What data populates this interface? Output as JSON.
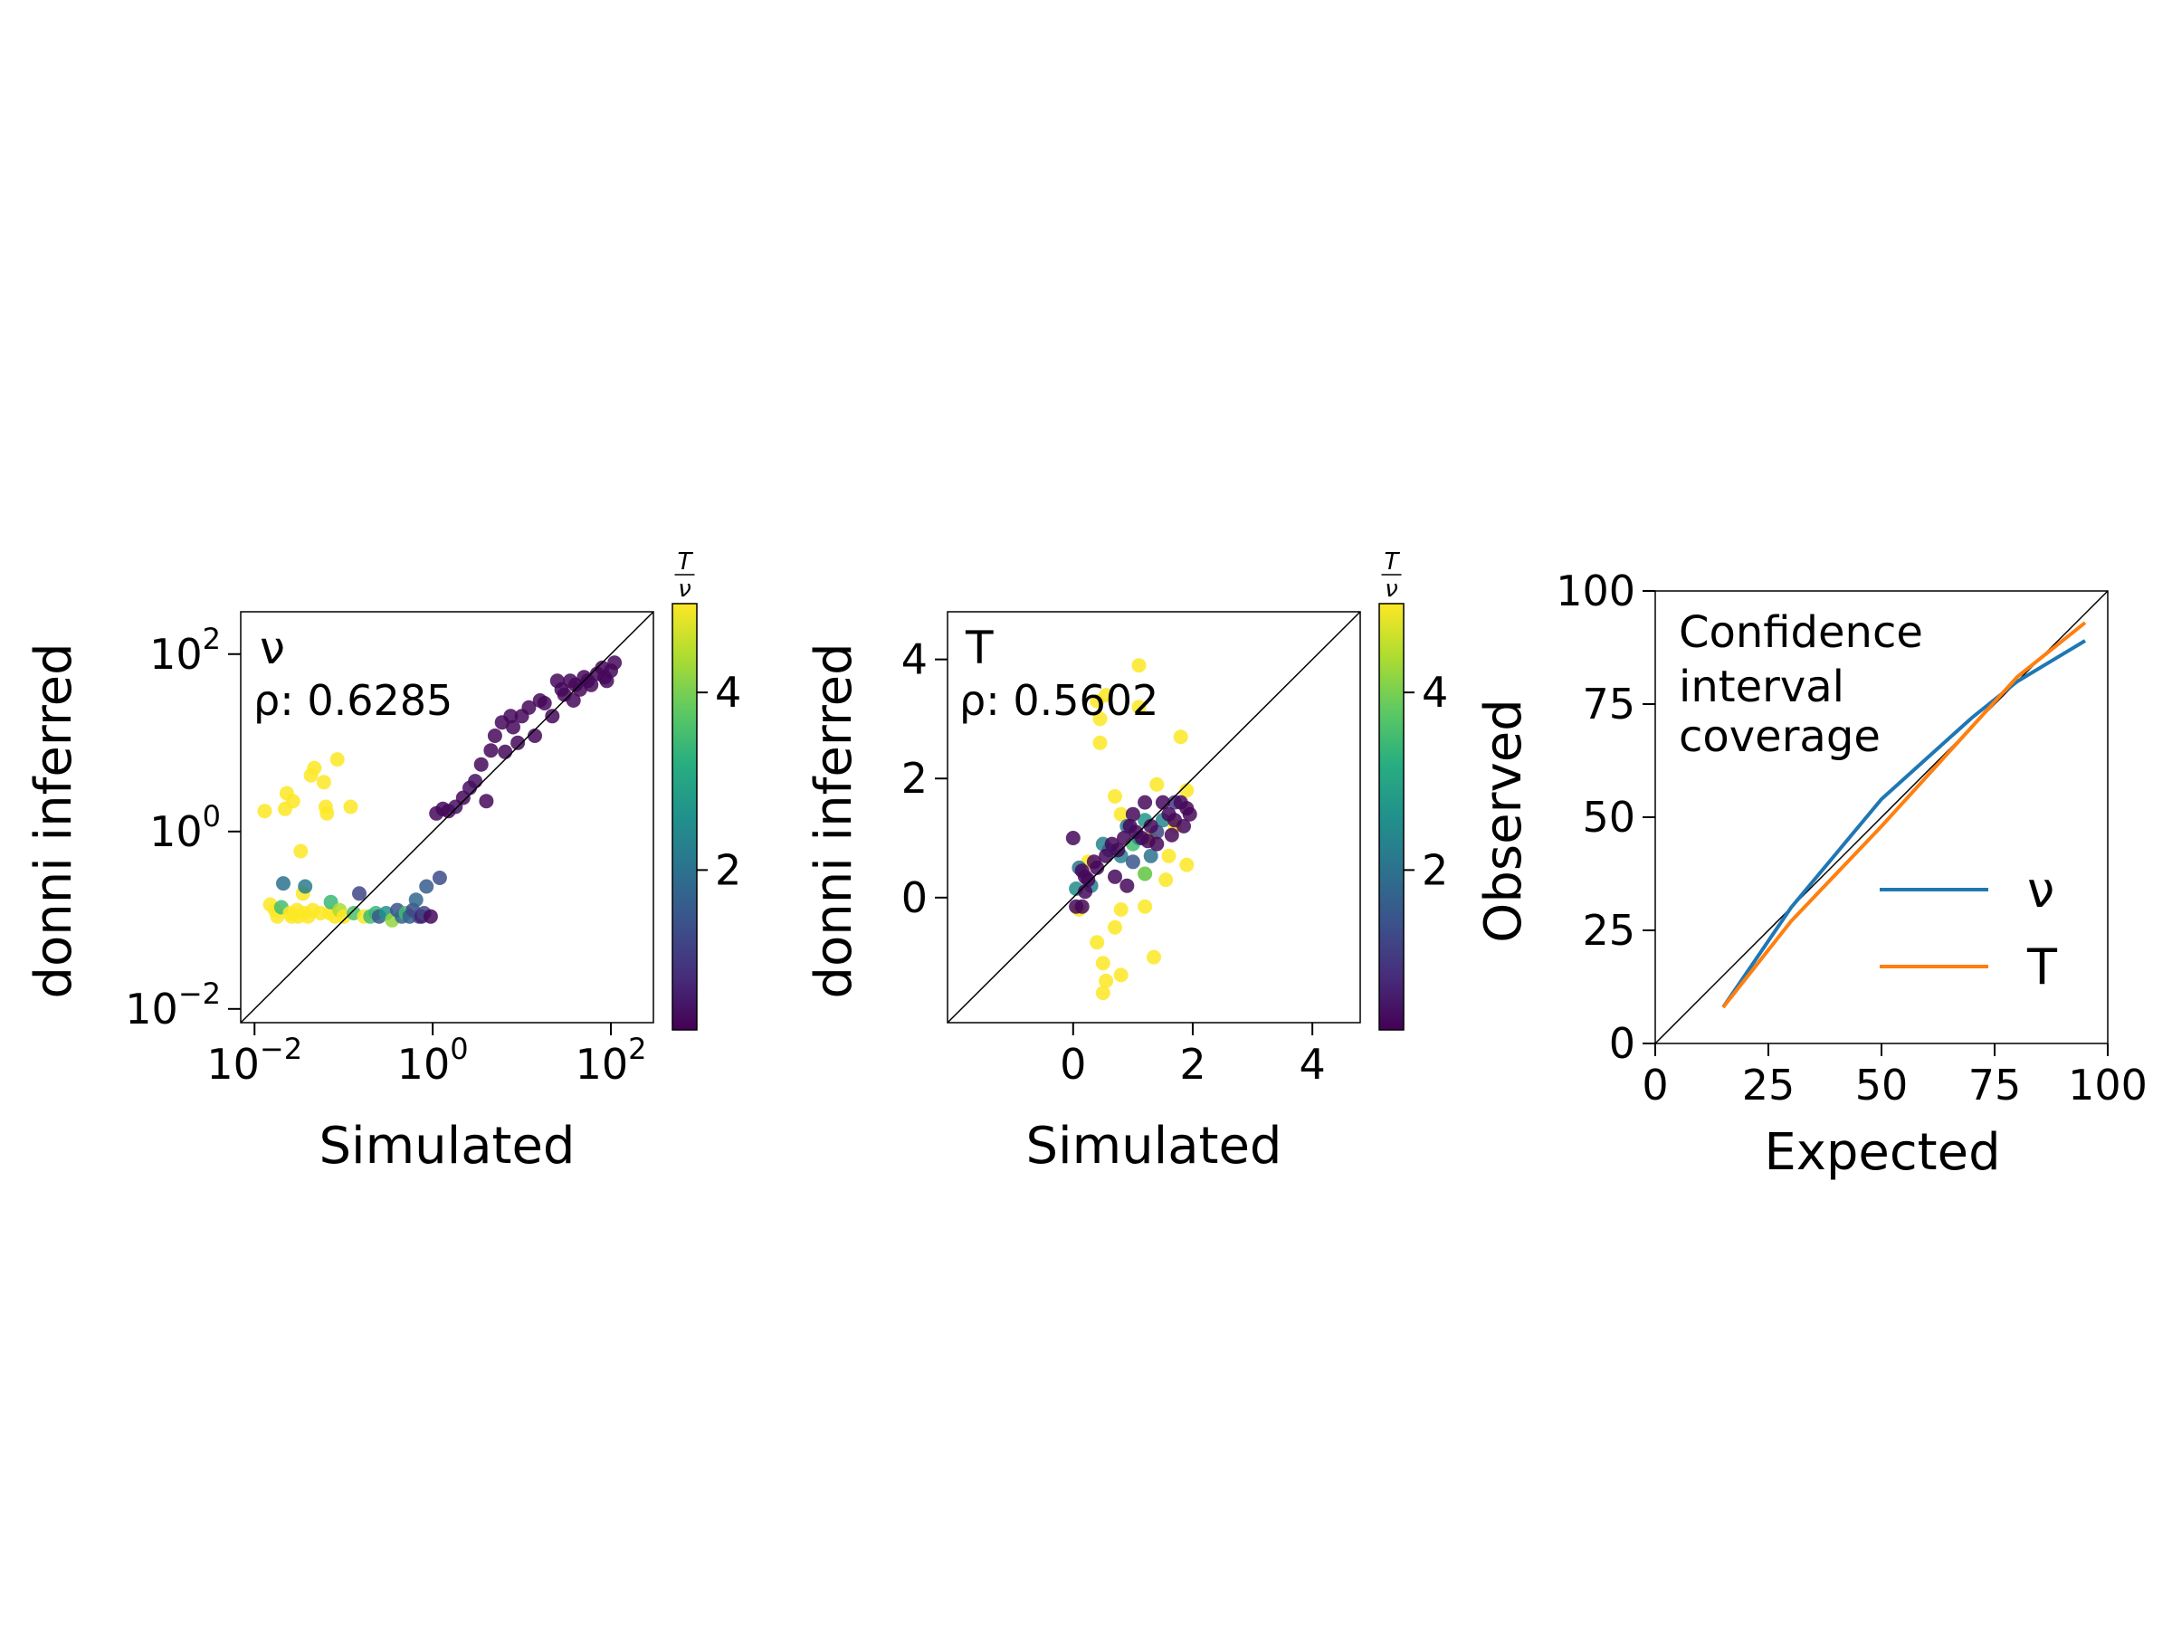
{
  "chart_data": [
    {
      "type": "scatter",
      "panel_label": "ν",
      "annotation": "ρ: 0.6285",
      "xlabel": "Simulated",
      "ylabel": "donni inferred",
      "xscale": "log",
      "yscale": "log",
      "xlim": [
        0.007,
        300
      ],
      "ylim": [
        0.007,
        300
      ],
      "xticks": [
        0.01,
        1,
        100
      ],
      "yticks": [
        0.01,
        1,
        100
      ],
      "xtick_labels": [
        {
          "base": "10",
          "exp": "−2"
        },
        {
          "base": "10",
          "exp": "0"
        },
        {
          "base": "10",
          "exp": "2"
        }
      ],
      "ytick_labels": [
        {
          "base": "10",
          "exp": "−2"
        },
        {
          "base": "10",
          "exp": "0"
        },
        {
          "base": "10",
          "exp": "2"
        }
      ],
      "identity_line": true,
      "colorbar": {
        "label_num": "T",
        "label_den": "ν",
        "range": [
          0.2,
          5
        ],
        "ticks": [
          2,
          4
        ],
        "tick_labels": [
          "2",
          "4"
        ],
        "colormap": "viridis"
      },
      "points": [
        [
          0.013,
          1.7,
          5
        ],
        [
          0.015,
          0.15,
          5
        ],
        [
          0.017,
          0.13,
          5
        ],
        [
          0.018,
          0.11,
          5
        ],
        [
          0.02,
          0.14,
          3.5
        ],
        [
          0.021,
          0.26,
          2
        ],
        [
          0.022,
          1.8,
          5
        ],
        [
          0.023,
          2.7,
          5
        ],
        [
          0.025,
          0.12,
          5
        ],
        [
          0.026,
          0.11,
          5
        ],
        [
          0.027,
          2.2,
          5
        ],
        [
          0.03,
          0.13,
          5
        ],
        [
          0.031,
          0.11,
          5
        ],
        [
          0.033,
          0.6,
          5
        ],
        [
          0.035,
          0.2,
          5
        ],
        [
          0.036,
          0.12,
          5
        ],
        [
          0.037,
          0.24,
          2.2
        ],
        [
          0.04,
          0.11,
          5
        ],
        [
          0.043,
          4.3,
          5
        ],
        [
          0.045,
          0.13,
          5
        ],
        [
          0.047,
          5.2,
          5
        ],
        [
          0.055,
          0.12,
          5
        ],
        [
          0.06,
          3.6,
          5
        ],
        [
          0.063,
          1.9,
          5
        ],
        [
          0.065,
          1.6,
          5
        ],
        [
          0.07,
          0.12,
          5
        ],
        [
          0.072,
          0.16,
          3.4
        ],
        [
          0.08,
          0.11,
          5
        ],
        [
          0.085,
          6.5,
          5
        ],
        [
          0.09,
          0.13,
          4.4
        ],
        [
          0.1,
          0.11,
          5
        ],
        [
          0.12,
          1.9,
          5
        ],
        [
          0.13,
          0.12,
          3.6
        ],
        [
          0.15,
          0.2,
          1.2
        ],
        [
          0.17,
          0.11,
          5
        ],
        [
          0.2,
          0.11,
          3.5
        ],
        [
          0.23,
          0.12,
          3.4
        ],
        [
          0.25,
          0.11,
          1.5
        ],
        [
          0.3,
          0.12,
          2.6
        ],
        [
          0.35,
          0.1,
          4.2
        ],
        [
          0.4,
          0.13,
          1.4
        ],
        [
          0.45,
          0.11,
          1.8
        ],
        [
          0.5,
          0.12,
          3.5
        ],
        [
          0.55,
          0.11,
          1.6
        ],
        [
          0.6,
          0.13,
          1.2
        ],
        [
          0.65,
          0.17,
          1.8
        ],
        [
          0.7,
          0.11,
          1.4
        ],
        [
          0.75,
          0.11,
          0.6
        ],
        [
          0.8,
          0.12,
          1.2
        ],
        [
          0.85,
          0.24,
          1.6
        ],
        [
          0.95,
          0.11,
          0.3
        ],
        [
          1.1,
          1.6,
          0.3
        ],
        [
          1.2,
          0.3,
          1.3
        ],
        [
          1.3,
          1.8,
          0.3
        ],
        [
          1.5,
          1.7,
          0.3
        ],
        [
          1.8,
          1.9,
          0.4
        ],
        [
          2.2,
          2.4,
          0.3
        ],
        [
          2.6,
          3.1,
          0.4
        ],
        [
          3,
          3.7,
          0.4
        ],
        [
          3.5,
          5.7,
          0.3
        ],
        [
          4,
          2.2,
          0.3
        ],
        [
          4.5,
          8.2,
          0.3
        ],
        [
          5,
          12,
          0.3
        ],
        [
          6,
          17,
          0.3
        ],
        [
          6.5,
          7.9,
          0.3
        ],
        [
          7.5,
          20,
          0.3
        ],
        [
          8,
          15,
          0.3
        ],
        [
          9,
          10,
          0.3
        ],
        [
          10,
          20,
          0.3
        ],
        [
          12,
          25,
          0.3
        ],
        [
          14,
          12,
          0.3
        ],
        [
          16,
          30,
          0.3
        ],
        [
          18,
          28,
          0.3
        ],
        [
          22,
          20,
          0.3
        ],
        [
          25,
          50,
          0.3
        ],
        [
          30,
          35,
          0.3
        ],
        [
          35,
          50,
          0.3
        ],
        [
          40,
          45,
          0.3
        ],
        [
          45,
          40,
          0.3
        ],
        [
          50,
          55,
          0.3
        ],
        [
          55,
          50,
          0.3
        ],
        [
          60,
          45,
          0.3
        ],
        [
          70,
          60,
          0.3
        ],
        [
          80,
          70,
          0.3
        ],
        [
          85,
          55,
          0.3
        ],
        [
          90,
          50,
          0.3
        ],
        [
          100,
          65,
          0.3
        ],
        [
          110,
          80,
          0.3
        ],
        [
          38,
          30,
          0.3
        ],
        [
          28,
          40,
          0.3
        ]
      ]
    },
    {
      "type": "scatter",
      "panel_label": "T",
      "annotation": "ρ: 0.5602",
      "xlabel": "Simulated",
      "ylabel": "donni inferred",
      "xscale": "linear",
      "yscale": "linear",
      "xlim": [
        -2.1,
        4.8
      ],
      "ylim": [
        -2.1,
        4.8
      ],
      "xticks": [
        0,
        2,
        4
      ],
      "yticks": [
        0,
        2,
        4
      ],
      "xtick_labels": [
        "0",
        "2",
        "4"
      ],
      "ytick_labels": [
        "0",
        "2",
        "4"
      ],
      "identity_line": true,
      "colorbar": {
        "label_num": "T",
        "label_den": "ν",
        "range": [
          0.2,
          5
        ],
        "ticks": [
          2,
          4
        ],
        "tick_labels": [
          "2",
          "4"
        ],
        "colormap": "viridis"
      },
      "points": [
        [
          0.4,
          3.3,
          5
        ],
        [
          0.45,
          3,
          5
        ],
        [
          0.55,
          3.4,
          5
        ],
        [
          1.1,
          3.2,
          5
        ],
        [
          1.1,
          3.9,
          5
        ],
        [
          1.8,
          2.7,
          5
        ],
        [
          0.45,
          2.6,
          5
        ],
        [
          1.4,
          1.9,
          5
        ],
        [
          1.9,
          1.8,
          5
        ],
        [
          0.7,
          1.7,
          5
        ],
        [
          0.8,
          1.4,
          5
        ],
        [
          1.3,
          1,
          5
        ],
        [
          1.7,
          1.2,
          5
        ],
        [
          1.6,
          0.7,
          5
        ],
        [
          1.9,
          0.55,
          5
        ],
        [
          1.2,
          0.4,
          5
        ],
        [
          0.8,
          -0.2,
          5
        ],
        [
          1.2,
          -0.15,
          5
        ],
        [
          0.7,
          -0.5,
          5
        ],
        [
          0.4,
          -0.75,
          5
        ],
        [
          0.5,
          -1.1,
          5
        ],
        [
          0.8,
          -1.3,
          5
        ],
        [
          0.55,
          -1.4,
          5
        ],
        [
          0.5,
          -1.6,
          5
        ],
        [
          1.35,
          -1,
          5
        ],
        [
          0.1,
          -0.2,
          5
        ],
        [
          0.25,
          0.6,
          5
        ],
        [
          1.2,
          0.4,
          3.8
        ],
        [
          1.55,
          0.3,
          5
        ],
        [
          1,
          0.9,
          3.5
        ],
        [
          0.05,
          0.15,
          2.5
        ],
        [
          0.3,
          0.2,
          2.2
        ],
        [
          0.1,
          0.5,
          2
        ],
        [
          0.5,
          0.9,
          2.3
        ],
        [
          0.6,
          0.8,
          1.8
        ],
        [
          0.8,
          0.7,
          2.3
        ],
        [
          0.9,
          1.2,
          2.2
        ],
        [
          1.1,
          1,
          2.5
        ],
        [
          1.2,
          1.3,
          2.7
        ],
        [
          1.3,
          0.7,
          2
        ],
        [
          1.5,
          1.3,
          2.4
        ],
        [
          1,
          0.6,
          1.5
        ],
        [
          1.4,
          1.1,
          1.2
        ],
        [
          1.7,
          1.6,
          1
        ],
        [
          0,
          1,
          0.3
        ],
        [
          0.2,
          0.1,
          0.3
        ],
        [
          0.15,
          -0.15,
          0.3
        ],
        [
          0.05,
          -0.15,
          0.3
        ],
        [
          0.25,
          0.3,
          0.3
        ],
        [
          0.4,
          0.5,
          0.3
        ],
        [
          0.55,
          0.7,
          0.3
        ],
        [
          0.65,
          0.9,
          0.3
        ],
        [
          0.75,
          0.8,
          0.3
        ],
        [
          0.85,
          1,
          0.3
        ],
        [
          0.9,
          0.2,
          0.3
        ],
        [
          1,
          1.4,
          0.3
        ],
        [
          1.05,
          1.1,
          0.3
        ],
        [
          1.15,
          1,
          0.3
        ],
        [
          1.2,
          1.6,
          0.3
        ],
        [
          1.3,
          1.2,
          0.3
        ],
        [
          1.4,
          0.9,
          0.3
        ],
        [
          1.5,
          1.6,
          0.3
        ],
        [
          1.6,
          1.4,
          0.3
        ],
        [
          1.7,
          1.3,
          0.3
        ],
        [
          1.8,
          1.6,
          0.3
        ],
        [
          1.9,
          1.5,
          0.3
        ],
        [
          1.95,
          1.4,
          0.3
        ],
        [
          0.2,
          0.35,
          0.3
        ],
        [
          0.35,
          0.6,
          0.3
        ],
        [
          0.7,
          0.35,
          0.3
        ],
        [
          0.95,
          1.2,
          0.3
        ],
        [
          1.25,
          0.95,
          0.3
        ],
        [
          1.65,
          1.05,
          0.3
        ],
        [
          1.85,
          1.2,
          0.3
        ],
        [
          0.15,
          0.45,
          0.3
        ]
      ]
    },
    {
      "type": "line",
      "title": "Confidence\ninterval\ncoverage",
      "xlabel": "Expected",
      "ylabel": "Observed",
      "xlim": [
        0,
        100
      ],
      "ylim": [
        0,
        100
      ],
      "xticks": [
        0,
        25,
        50,
        75,
        100
      ],
      "yticks": [
        0,
        25,
        50,
        75,
        100
      ],
      "xtick_labels": [
        "0",
        "25",
        "50",
        "75",
        "100"
      ],
      "ytick_labels": [
        "0",
        "25",
        "50",
        "75",
        "100"
      ],
      "identity_line": true,
      "legend_position": "lower-right",
      "series": [
        {
          "name": "ν",
          "color": "#1f77b4",
          "x": [
            15,
            30,
            50,
            60,
            70,
            80,
            95
          ],
          "y": [
            8,
            30,
            54,
            63,
            72,
            80,
            89
          ]
        },
        {
          "name": "T",
          "color": "#ff7f0e",
          "x": [
            15,
            30,
            50,
            60,
            70,
            80,
            95
          ],
          "y": [
            8,
            27,
            48,
            59,
            70,
            81,
            93
          ]
        }
      ]
    }
  ]
}
